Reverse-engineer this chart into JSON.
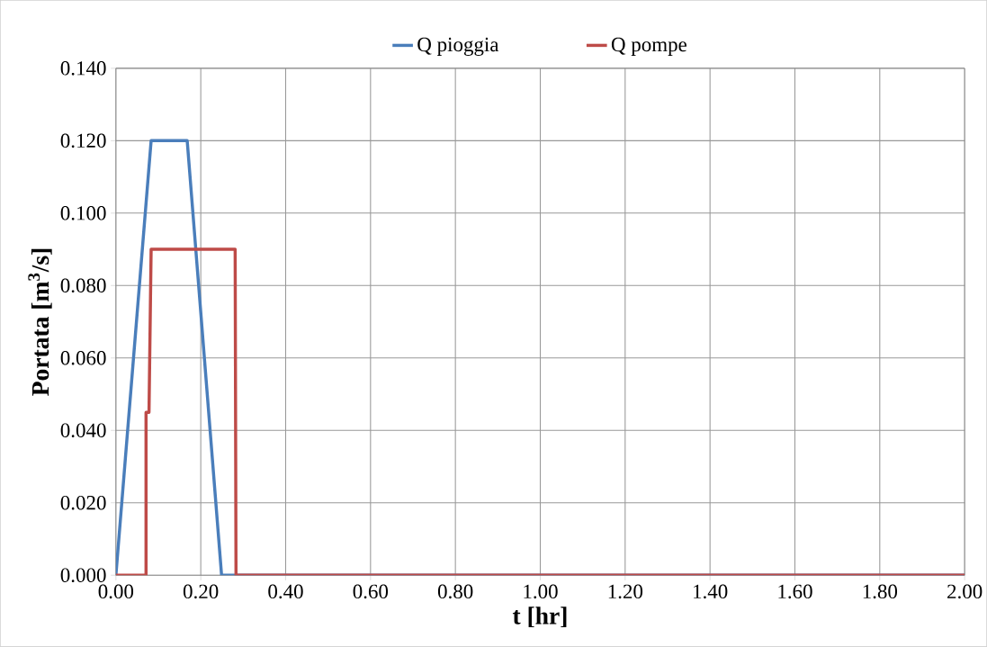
{
  "chart_data": {
    "type": "line",
    "xlabel": "t [hr]",
    "ylabel": "Portata  [m$^{3}$/s]",
    "xlim": [
      0,
      2
    ],
    "xticks": [
      {
        "value": 0,
        "label": "0.00"
      },
      {
        "value": 0.2,
        "label": "0.20"
      },
      {
        "value": 0.4,
        "label": "0.40"
      },
      {
        "value": 0.6,
        "label": "0.60"
      },
      {
        "value": 0.8,
        "label": "0.80"
      },
      {
        "value": 1,
        "label": "1.00"
      },
      {
        "value": 1.2,
        "label": "1.20"
      },
      {
        "value": 1.4,
        "label": "1.40"
      },
      {
        "value": 1.6,
        "label": "1.60"
      },
      {
        "value": 1.8,
        "label": "1.80"
      },
      {
        "value": 2,
        "label": "2.00"
      }
    ],
    "ylim": [
      0,
      0.14
    ],
    "yticks": [
      {
        "value": 0,
        "label": "0.000"
      },
      {
        "value": 0.02,
        "label": "0.020"
      },
      {
        "value": 0.04,
        "label": "0.040"
      },
      {
        "value": 0.06,
        "label": "0.060"
      },
      {
        "value": 0.08,
        "label": "0.080"
      },
      {
        "value": 0.1,
        "label": "0.100"
      },
      {
        "value": 0.12,
        "label": "0.120"
      },
      {
        "value": 0.14,
        "label": "0.140"
      }
    ],
    "grid": true,
    "legend": "top",
    "marker": "none",
    "line_style": "solid",
    "series": [
      {
        "name": "Q pioggia",
        "color": "#4a7ebb",
        "x": [
          0,
          0.083,
          0.168,
          0.249,
          2
        ],
        "values": [
          0,
          0.12,
          0.12,
          0,
          0
        ]
      },
      {
        "name": "Q pompe",
        "color": "#be4b48",
        "x": [
          0,
          0.071,
          0.071,
          0.078,
          0.083,
          0.281,
          0.283,
          2
        ],
        "values": [
          0,
          0,
          0.045,
          0.045,
          0.09,
          0.09,
          0,
          0
        ]
      }
    ]
  }
}
